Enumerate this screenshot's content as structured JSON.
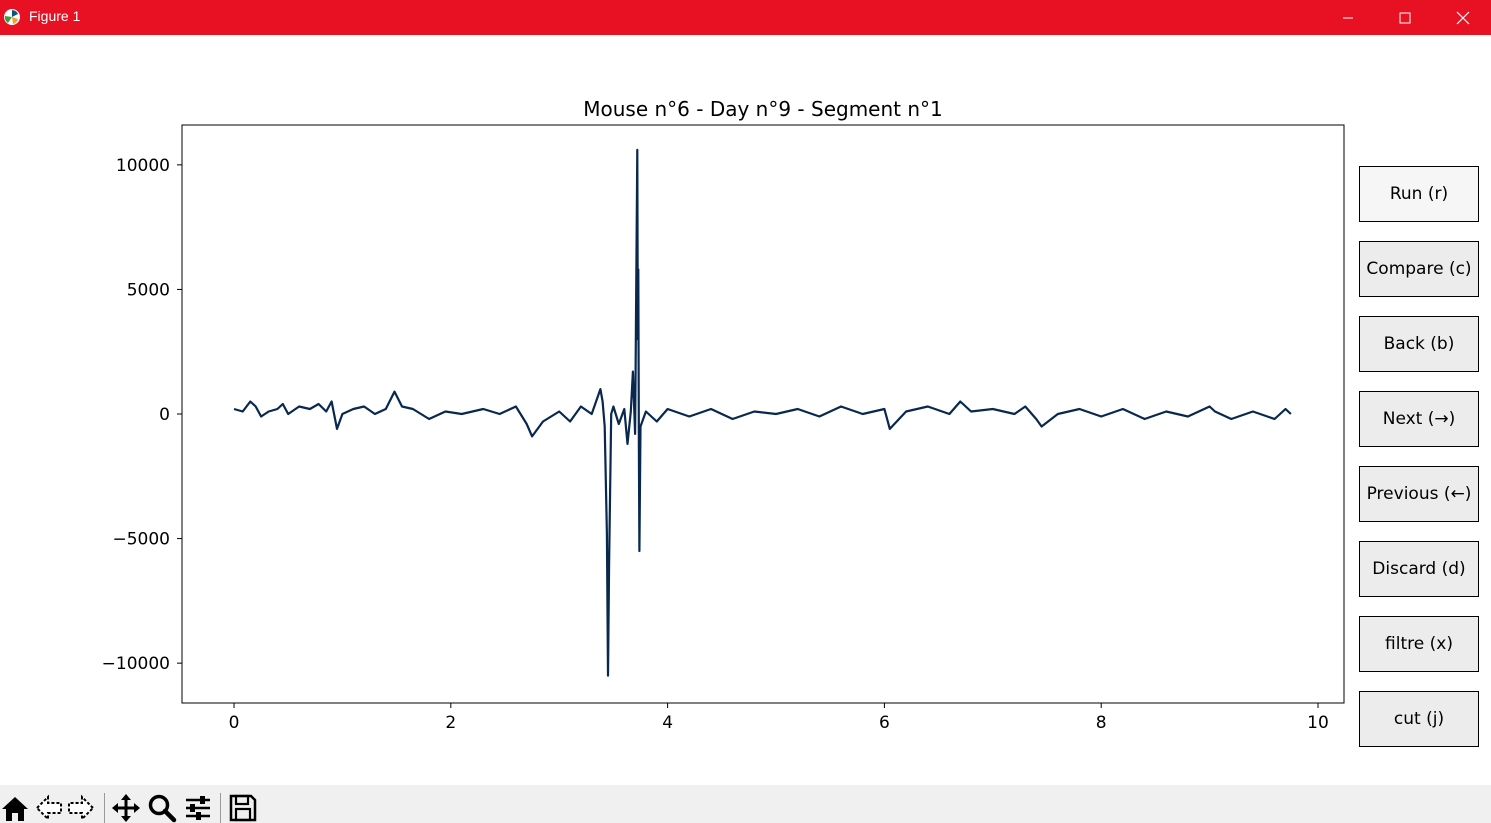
{
  "window": {
    "title": "Figure 1",
    "icons": [
      "matplotlib-logo-icon",
      "minimize-icon",
      "maximize-icon",
      "close-icon"
    ],
    "titlebar_color": "#e81123"
  },
  "chart_data": {
    "type": "line",
    "title": "Mouse n°6 - Day n°9 - Segment n°1",
    "xlabel": "",
    "ylabel": "",
    "xlim": [
      -0.48,
      10.24
    ],
    "ylim": [
      -11600,
      11600
    ],
    "xticks": [
      0,
      2,
      4,
      6,
      8,
      10
    ],
    "yticks": [
      10000,
      5000,
      0,
      -5000,
      -10000
    ],
    "xtick_labels": [
      "0",
      "2",
      "4",
      "6",
      "8",
      "10"
    ],
    "ytick_labels": [
      "10000",
      "5000",
      "0",
      "−5000",
      "−10000"
    ],
    "grid": false,
    "series_color": "#08284f",
    "series": [
      {
        "x": [
          0,
          0.08,
          0.15,
          0.2,
          0.25,
          0.32,
          0.4,
          0.45,
          0.5,
          0.6,
          0.7,
          0.78,
          0.85,
          0.9,
          0.95,
          1.0,
          1.1,
          1.2,
          1.3,
          1.4,
          1.48,
          1.55,
          1.65,
          1.8,
          1.95,
          2.1,
          2.3,
          2.45,
          2.6,
          2.7,
          2.75,
          2.85,
          3.0,
          3.1,
          3.2,
          3.3,
          3.38,
          3.4,
          3.42,
          3.44,
          3.45,
          3.46,
          3.48,
          3.5,
          3.55,
          3.6,
          3.63,
          3.66,
          3.68,
          3.7,
          3.72,
          3.725,
          3.73,
          3.735,
          3.74,
          3.75,
          3.8,
          3.9,
          4.0,
          4.2,
          4.4,
          4.6,
          4.8,
          5.0,
          5.2,
          5.4,
          5.6,
          5.8,
          6.0,
          6.05,
          6.2,
          6.4,
          6.6,
          6.7,
          6.8,
          7.0,
          7.2,
          7.3,
          7.4,
          7.45,
          7.6,
          7.8,
          8.0,
          8.2,
          8.4,
          8.6,
          8.8,
          9.0,
          9.05,
          9.2,
          9.4,
          9.6,
          9.7,
          9.75
        ],
        "y": [
          200,
          100,
          500,
          300,
          -100,
          100,
          200,
          400,
          0,
          300,
          200,
          400,
          100,
          500,
          -600,
          0,
          200,
          300,
          0,
          200,
          900,
          300,
          200,
          -200,
          100,
          0,
          200,
          0,
          300,
          -400,
          -900,
          -300,
          100,
          -300,
          300,
          0,
          1000,
          500,
          -500,
          -4800,
          -10500,
          -6000,
          0,
          300,
          -400,
          200,
          -1200,
          100,
          1700,
          -800,
          10600,
          3000,
          5800,
          -1500,
          -5500,
          -500,
          100,
          -300,
          200,
          -100,
          200,
          -200,
          100,
          0,
          200,
          -100,
          300,
          0,
          200,
          -600,
          100,
          300,
          0,
          500,
          100,
          200,
          0,
          300,
          -200,
          -500,
          0,
          200,
          -100,
          200,
          -200,
          100,
          -100,
          300,
          100,
          -200,
          100,
          -200,
          200,
          0
        ]
      }
    ]
  },
  "side_buttons": [
    {
      "label": "Run (r)"
    },
    {
      "label": "Compare (c)"
    },
    {
      "label": "Back (b)"
    },
    {
      "label": "Next (→)"
    },
    {
      "label": "Previous (←)"
    },
    {
      "label": "Discard (d)"
    },
    {
      "label": "filtre (x)"
    },
    {
      "label": "cut (j)"
    }
  ],
  "toolbar": {
    "icons": [
      "home-icon",
      "back-arrow-icon",
      "forward-arrow-icon",
      "pan-icon",
      "zoom-icon",
      "configure-subplots-icon",
      "save-icon"
    ]
  }
}
